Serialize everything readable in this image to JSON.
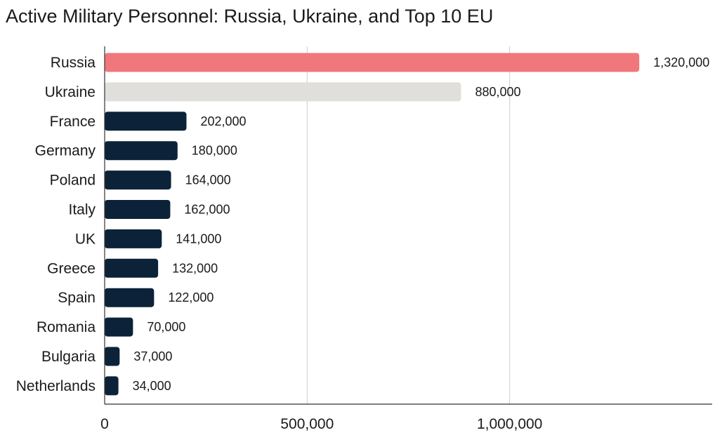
{
  "chart_data": {
    "type": "bar",
    "orientation": "horizontal",
    "title": "Active Military Personnel: Russia, Ukraine, and Top 10 EU",
    "xlabel": "",
    "ylabel": "",
    "categories": [
      "Russia",
      "Ukraine",
      "France",
      "Germany",
      "Poland",
      "Italy",
      "UK",
      "Greece",
      "Spain",
      "Romania",
      "Bulgaria",
      "Netherlands"
    ],
    "values": [
      1320000,
      880000,
      202000,
      180000,
      164000,
      162000,
      141000,
      132000,
      122000,
      70000,
      37000,
      34000
    ],
    "value_labels": [
      "1,320,000",
      "880,000",
      "202,000",
      "180,000",
      "164,000",
      "162,000",
      "141,000",
      "132,000",
      "122,000",
      "70,000",
      "37,000",
      "34,000"
    ],
    "bar_colors": [
      "#f0777b",
      "#e0dfdb",
      "#0c2238",
      "#0c2238",
      "#0c2238",
      "#0c2238",
      "#0c2238",
      "#0c2238",
      "#0c2238",
      "#0c2238",
      "#0c2238",
      "#0c2238"
    ],
    "xlim": [
      0,
      1500000
    ],
    "xticks": [
      0,
      500000,
      1000000
    ],
    "xtick_labels": [
      "0",
      "500,000",
      "1,000,000"
    ],
    "grid": true,
    "legend": "none"
  }
}
